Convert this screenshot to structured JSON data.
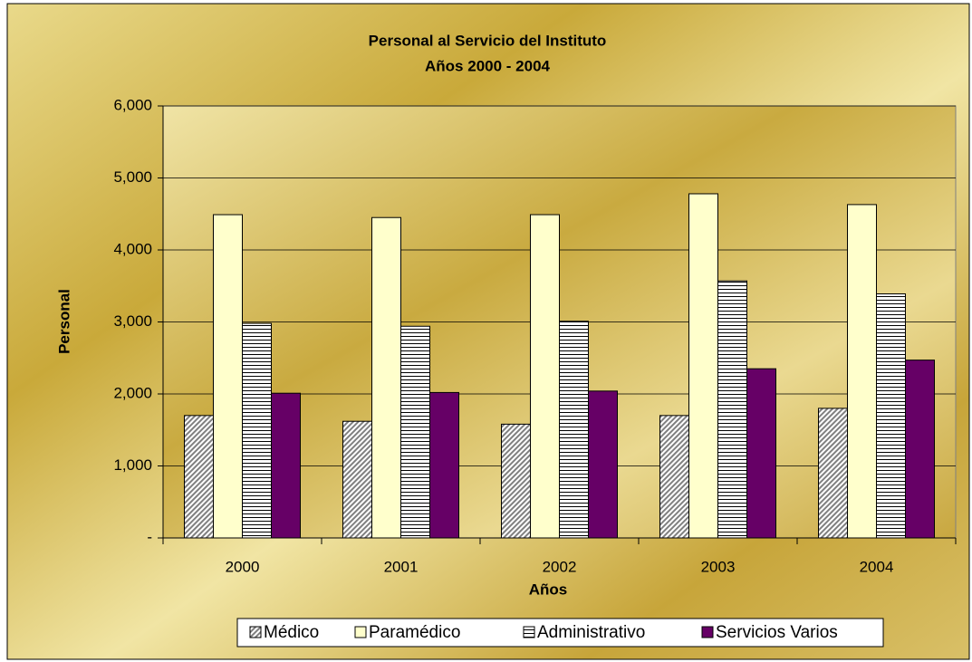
{
  "chart_data": {
    "type": "bar",
    "title": "Personal al Servicio del Instituto",
    "subtitle": "Años 2000 - 2004",
    "x_label": "Años",
    "y_label": "Personal",
    "categories": [
      "2000",
      "2001",
      "2002",
      "2003",
      "2004"
    ],
    "series": [
      {
        "name": "Médico",
        "color": "#808080",
        "pattern": "diagonal",
        "values": [
          1700,
          1620,
          1580,
          1700,
          1800
        ]
      },
      {
        "name": "Paramédico",
        "color": "#ffffcc",
        "pattern": "solid",
        "values": [
          4490,
          4450,
          4490,
          4780,
          4630
        ]
      },
      {
        "name": "Administrativo",
        "color": "#000000",
        "pattern": "horizontal",
        "values": [
          2980,
          2940,
          3010,
          3570,
          3390
        ]
      },
      {
        "name": "Servicios Varios",
        "color": "#660066",
        "pattern": "solid",
        "values": [
          2010,
          2020,
          2040,
          2350,
          2470
        ]
      }
    ],
    "ylim": [
      0,
      6000
    ],
    "yticks": [
      {
        "value": 0,
        "label": "-"
      },
      {
        "value": 1000,
        "label": "1,000"
      },
      {
        "value": 2000,
        "label": "2,000"
      },
      {
        "value": 3000,
        "label": "3,000"
      },
      {
        "value": 4000,
        "label": "4,000"
      },
      {
        "value": 5000,
        "label": "5,000"
      },
      {
        "value": 6000,
        "label": "6,000"
      }
    ],
    "grid": true,
    "legend": "bottom"
  }
}
